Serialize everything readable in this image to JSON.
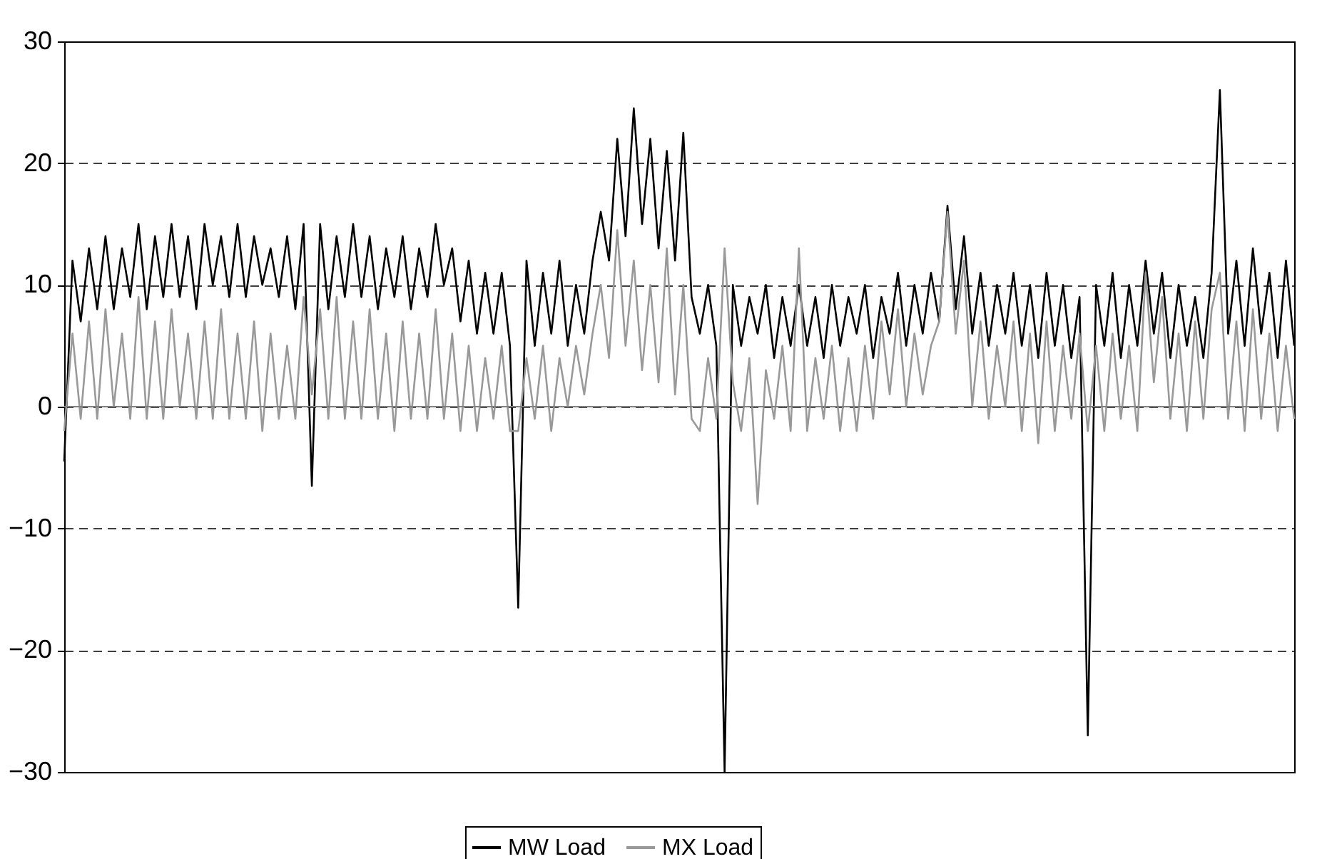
{
  "chart_data": {
    "type": "line",
    "categories": [
      null,
      null,
      null,
      null,
      null,
      null,
      null,
      null,
      null,
      null,
      null,
      null,
      null,
      null,
      null,
      null,
      null,
      null,
      null,
      null,
      null,
      null,
      null,
      null,
      null,
      null,
      null,
      null,
      null,
      null,
      null,
      null,
      null,
      null,
      null,
      null,
      null,
      null,
      null,
      null,
      null,
      null,
      null,
      null,
      null,
      null,
      null,
      null,
      null,
      null,
      null,
      null,
      null,
      null,
      null,
      null,
      null,
      null,
      null,
      null,
      null,
      null,
      null,
      null,
      null,
      null,
      null,
      null,
      null,
      null,
      null,
      null,
      null,
      null,
      null,
      null,
      null,
      null,
      null,
      null,
      null,
      null,
      null,
      null,
      null,
      null,
      null,
      null,
      null,
      null,
      null,
      null,
      null,
      null,
      null,
      null,
      null,
      null,
      null,
      null,
      null,
      null,
      null,
      null,
      null,
      null,
      null,
      null,
      null,
      null,
      null,
      null,
      null,
      null,
      null,
      null,
      null,
      null,
      null,
      null,
      null,
      null,
      null,
      null,
      null,
      null,
      null,
      null,
      null,
      null,
      null,
      null,
      null,
      null,
      null,
      null,
      null,
      null,
      null,
      null,
      null,
      null,
      null,
      null,
      null,
      null,
      null,
      null,
      null,
      null
    ],
    "series": [
      {
        "name": "MW Load",
        "color": "#000000",
        "values": [
          -4.5,
          12,
          7,
          13,
          8,
          14,
          8,
          13,
          9,
          15,
          8,
          14,
          9,
          15,
          9,
          14,
          8,
          15,
          10,
          14,
          9,
          15,
          9,
          14,
          10,
          13,
          9,
          14,
          8,
          15,
          -6.5,
          15,
          8,
          14,
          9,
          15,
          9,
          14,
          8,
          13,
          9,
          14,
          8,
          13,
          9,
          15,
          10,
          13,
          7,
          12,
          6,
          11,
          6,
          11,
          5,
          -16.5,
          12,
          5,
          11,
          6,
          12,
          5,
          10,
          6,
          12,
          16,
          12,
          22,
          14,
          24.5,
          15,
          22,
          13,
          21,
          12,
          22.5,
          9,
          6,
          10,
          5,
          -30,
          10,
          5,
          9,
          6,
          10,
          4,
          9,
          5,
          10,
          5,
          9,
          4,
          10,
          5,
          9,
          6,
          10,
          4,
          9,
          6,
          11,
          5,
          10,
          6,
          11,
          7,
          16.5,
          8,
          14,
          6,
          11,
          5,
          10,
          6,
          11,
          5,
          10,
          4,
          11,
          5,
          10,
          4,
          9,
          -27,
          10,
          5,
          11,
          4,
          10,
          5,
          12,
          6,
          11,
          4,
          10,
          5,
          9,
          4,
          11,
          26,
          6,
          12,
          5,
          13,
          6,
          11,
          4,
          12,
          5
        ]
      },
      {
        "name": "MX Load",
        "color": "#999999",
        "values": [
          -2,
          6,
          -1,
          7,
          -1,
          8,
          0,
          6,
          -1,
          9,
          -1,
          7,
          -1,
          8,
          0,
          6,
          -1,
          7,
          -1,
          8,
          -1,
          6,
          -1,
          7,
          -2,
          6,
          -1,
          5,
          -1,
          9,
          1,
          8,
          -1,
          9,
          -1,
          7,
          -1,
          8,
          -1,
          6,
          -2,
          7,
          -1,
          6,
          -1,
          8,
          -1,
          6,
          -2,
          5,
          -2,
          4,
          -1,
          5,
          -2,
          -2,
          4,
          -1,
          5,
          -2,
          4,
          0,
          5,
          1,
          6,
          10,
          4,
          14.5,
          5,
          12,
          3,
          10,
          2,
          13,
          1,
          10,
          -1,
          -2,
          4,
          -1,
          13,
          2,
          -2,
          4,
          -8,
          3,
          -1,
          5,
          -2,
          13,
          -2,
          4,
          -1,
          5,
          -2,
          4,
          -2,
          5,
          -1,
          7,
          1,
          8,
          0,
          6,
          1,
          5,
          7,
          16,
          6,
          12,
          0,
          7,
          -1,
          5,
          0,
          7,
          -2,
          6,
          -3,
          7,
          -2,
          5,
          -1,
          6,
          -2,
          5,
          -2,
          6,
          -1,
          5,
          -2,
          11,
          2,
          9,
          -1,
          6,
          -2,
          7,
          -1,
          8,
          11,
          -1,
          7,
          -2,
          8,
          -1,
          6,
          -2,
          5,
          -1
        ]
      }
    ],
    "ylim": [
      -30,
      30
    ],
    "yticks": [
      -30,
      -20,
      -10,
      0,
      10,
      20,
      30
    ],
    "grid": "y",
    "line_style": "solid",
    "marker": "none",
    "legend": "bottom",
    "tick_labels": "y",
    "ref_lines": [
      {
        "axis": "y",
        "value": 0,
        "color": "#808080",
        "line_style": "solid"
      }
    ]
  }
}
